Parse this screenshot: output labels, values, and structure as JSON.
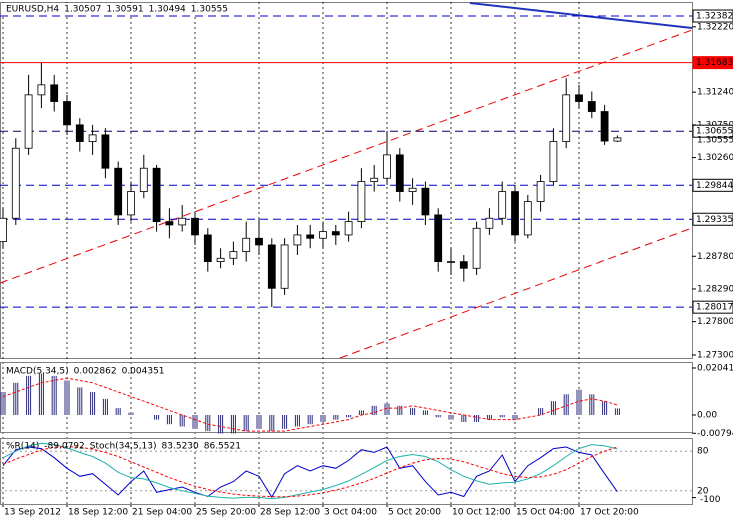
{
  "chart_data": [
    {
      "type": "candlestick",
      "title": "EURUSD,H4",
      "xlim": [
        -0.234,
        53.828
      ],
      "xticks": [
        {
          "value": 0,
          "label": "13 Sep 2012"
        },
        {
          "value": 5,
          "label": "18 Sep 12:00"
        },
        {
          "value": 10,
          "label": "21 Sep 04:00"
        },
        {
          "value": 15,
          "label": "25 Sep 20:00"
        },
        {
          "value": 20,
          "label": "28 Sep 12:00"
        },
        {
          "value": 25,
          "label": "3 Oct 04:00"
        },
        {
          "value": 30,
          "label": "5 Oct 20:00"
        },
        {
          "value": 35,
          "label": "10 Oct 12:00"
        },
        {
          "value": 40,
          "label": "15 Oct 04:00"
        },
        {
          "value": 45,
          "label": "17 Oct 20:00"
        }
      ],
      "grid": true,
      "ylim": [
        1.27255,
        1.32592
      ],
      "yticks": [
        {
          "value": 1.3222,
          "label": "1.32220"
        },
        {
          "value": 1.3124,
          "label": "1.31240"
        },
        {
          "value": 1.3075,
          "label": "1.30750"
        },
        {
          "value": 1.3026,
          "label": "1.30260"
        },
        {
          "value": 1.2878,
          "label": "1.28780"
        },
        {
          "value": 1.2829,
          "label": "1.28290"
        },
        {
          "value": 1.278,
          "label": "1.27800"
        },
        {
          "value": 1.273,
          "label": "1.27300"
        }
      ],
      "up_color": "#ffffff",
      "down_color": "#000000",
      "open": [
        1.29,
        1.2935,
        1.304,
        1.312,
        1.3135,
        1.311,
        1.3075,
        1.305,
        1.306,
        1.301,
        1.294,
        1.2975,
        1.301,
        1.293,
        1.2925,
        1.2935,
        1.291,
        1.287,
        1.2875,
        1.2885,
        1.2905,
        1.2895,
        1.283,
        1.2895,
        1.291,
        1.2905,
        1.2915,
        1.291,
        1.293,
        1.299,
        1.2995,
        1.303,
        1.2975,
        1.298,
        1.294,
        1.287,
        1.287,
        1.286,
        1.292,
        1.2935,
        1.2975,
        1.291,
        1.296,
        1.299,
        1.305,
        1.312,
        1.311,
        1.3095,
        1.30507
      ],
      "high": [
        1.295,
        1.3055,
        1.315,
        1.3168,
        1.315,
        1.312,
        1.3085,
        1.3075,
        1.307,
        1.302,
        1.299,
        1.303,
        1.3015,
        1.295,
        1.2955,
        1.2945,
        1.292,
        1.289,
        1.29,
        1.293,
        1.2935,
        1.2905,
        1.2905,
        1.2925,
        1.2925,
        1.293,
        1.2925,
        1.2945,
        1.301,
        1.3015,
        1.3066,
        1.304,
        1.2995,
        1.299,
        1.295,
        1.289,
        1.288,
        1.293,
        1.295,
        1.299,
        1.2985,
        1.297,
        1.3,
        1.307,
        1.3145,
        1.3135,
        1.3125,
        1.3105,
        1.30591
      ],
      "low": [
        1.289,
        1.2925,
        1.303,
        1.31,
        1.3095,
        1.306,
        1.3035,
        1.303,
        1.2995,
        1.2925,
        1.293,
        1.2965,
        1.2915,
        1.2905,
        1.2915,
        1.2895,
        1.2855,
        1.286,
        1.2865,
        1.287,
        1.288,
        1.2802,
        1.282,
        1.288,
        1.289,
        1.289,
        1.2895,
        1.29,
        1.292,
        1.2975,
        1.2985,
        1.296,
        1.2955,
        1.2925,
        1.2855,
        1.285,
        1.284,
        1.285,
        1.291,
        1.2925,
        1.29,
        1.2905,
        1.2945,
        1.2985,
        1.304,
        1.31,
        1.3085,
        1.3045,
        1.30494
      ],
      "close": [
        1.2935,
        1.304,
        1.312,
        1.3135,
        1.311,
        1.3075,
        1.305,
        1.306,
        1.301,
        1.294,
        1.2975,
        1.301,
        1.293,
        1.2925,
        1.2935,
        1.291,
        1.287,
        1.2875,
        1.2885,
        1.2905,
        1.2895,
        1.283,
        1.2895,
        1.291,
        1.2905,
        1.2915,
        1.291,
        1.293,
        1.299,
        1.2995,
        1.303,
        1.2975,
        1.298,
        1.294,
        1.287,
        1.287,
        1.286,
        1.292,
        1.2935,
        1.2975,
        1.291,
        1.296,
        1.299,
        1.305,
        1.312,
        1.311,
        1.3095,
        1.30507,
        1.30555
      ],
      "levels": [
        {
          "value": 1.32382,
          "color": "#0000cc",
          "style": "dashed"
        },
        {
          "value": 1.31683,
          "color": "#ff0000",
          "style": "solid"
        },
        {
          "value": 1.30655,
          "color": "#000066",
          "style": "dashed"
        },
        {
          "value": 1.29844,
          "color": "#0000cc",
          "style": "dashed"
        },
        {
          "value": 1.29335,
          "color": "#0000cc",
          "style": "dashed"
        },
        {
          "value": 1.28017,
          "color": "#0000cc",
          "style": "dashed"
        }
      ],
      "trendlines": [
        {
          "x": [
            -0.234,
            53.828
          ],
          "y": [
            1.28379,
            1.32172
          ],
          "color": "#ee0000",
          "style": "dashed"
        },
        {
          "x": [
            26.33,
            53.828
          ],
          "y": [
            1.27255,
            1.29204
          ],
          "color": "#ee0000",
          "style": "dashed"
        },
        {
          "x": [
            36.48,
            53.828
          ],
          "y": [
            1.32577,
            1.32202
          ],
          "color": "#1f33bb",
          "style": "solid"
        }
      ]
    },
    {
      "type": "bar",
      "title": "MACD(5,34,5)",
      "color": "#2a2a7a",
      "signal_color": "#ff0000",
      "ylim": [
        -0.00738,
        0.02302
      ],
      "yticks": [
        0.020413,
        {
          "value": 0,
          "label": "0.00"
        },
        -0.00794
      ],
      "values": [
        0.01,
        0.014,
        0.017,
        0.018,
        0.017,
        0.015,
        0.012,
        0.01,
        0.007,
        0.003,
        0.001,
        0.0,
        -0.002,
        -0.004,
        -0.005,
        -0.006,
        -0.007,
        -0.008,
        -0.008,
        -0.007,
        -0.006,
        -0.007,
        -0.006,
        -0.005,
        -0.004,
        -0.003,
        -0.002,
        -0.001,
        0.002,
        0.004,
        0.005,
        0.004,
        0.003,
        0.002,
        -0.001,
        -0.002,
        -0.003,
        -0.003,
        -0.002,
        -0.001,
        -0.002,
        0.0,
        0.003,
        0.006,
        0.009,
        0.011,
        0.009,
        0.006,
        0.002862
      ],
      "signal": [
        0.008,
        0.01,
        0.012,
        0.014,
        0.015,
        0.016,
        0.015,
        0.014,
        0.012,
        0.01,
        0.008,
        0.006,
        0.004,
        0.002,
        0.0,
        -0.002,
        -0.004,
        -0.005,
        -0.006,
        -0.007,
        -0.007,
        -0.007,
        -0.007,
        -0.006,
        -0.005,
        -0.004,
        -0.003,
        -0.002,
        0.0,
        0.001,
        0.003,
        0.003,
        0.004,
        0.003,
        0.002,
        0.001,
        0.0,
        -0.001,
        -0.002,
        -0.002,
        -0.002,
        -0.001,
        0.0,
        0.002,
        0.004,
        0.006,
        0.007,
        0.006,
        0.004351
      ]
    },
    {
      "type": "line",
      "ylim": [
        0,
        100
      ],
      "yticks": [
        80,
        20
      ],
      "y2lim": [
        -112,
        12
      ],
      "y2ticks": [
        -100
      ],
      "series": [
        {
          "name": "%R(14)",
          "color": "#0000cc",
          "axis": "y2",
          "values": [
            -40,
            -10,
            -5,
            -8,
            -25,
            -45,
            -60,
            -55,
            -75,
            -95,
            -70,
            -50,
            -90,
            -85,
            -80,
            -90,
            -98,
            -80,
            -70,
            -50,
            -60,
            -99,
            -55,
            -40,
            -50,
            -40,
            -45,
            -30,
            -10,
            -15,
            -5,
            -45,
            -40,
            -70,
            -95,
            -90,
            -98,
            -60,
            -50,
            -20,
            -70,
            -40,
            -25,
            -8,
            -5,
            -15,
            -20,
            -55,
            -89.0792
          ]
        },
        {
          "name": "Stoch(34,5,13)",
          "color": "#20b2aa",
          "last_label": "83.5230",
          "values": [
            70,
            80,
            88,
            92,
            90,
            85,
            78,
            72,
            62,
            48,
            40,
            38,
            32,
            25,
            20,
            16,
            12,
            10,
            9,
            10,
            10,
            8,
            10,
            14,
            18,
            22,
            28,
            35,
            45,
            55,
            66,
            72,
            75,
            72,
            64,
            52,
            42,
            35,
            30,
            32,
            33,
            38,
            46,
            58,
            72,
            84,
            90,
            88,
            83.523
          ]
        },
        {
          "color": "#ff0000",
          "style": "dashed",
          "values": [
            60,
            68,
            75,
            82,
            86,
            87,
            86,
            83,
            78,
            72,
            64,
            56,
            48,
            40,
            33,
            27,
            22,
            18,
            15,
            13,
            12,
            11,
            11,
            12,
            14,
            17,
            21,
            26,
            32,
            39,
            47,
            55,
            62,
            67,
            69,
            68,
            64,
            58,
            52,
            46,
            42,
            40,
            41,
            45,
            52,
            62,
            72,
            80,
            86.5521
          ]
        }
      ]
    }
  ]
}
